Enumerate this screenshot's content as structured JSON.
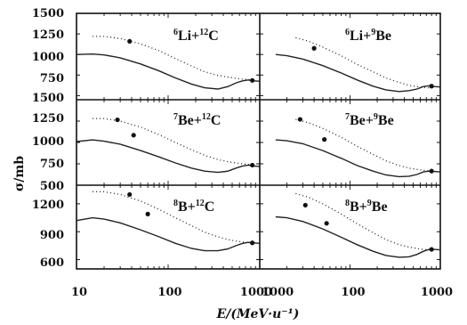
{
  "figure": {
    "ylabel": "σ/mb",
    "xlabel": "E/(MeV·u⁻¹)",
    "x_tick_labels_left": [
      "10",
      "100",
      "1000"
    ],
    "x_tick_labels_right": [
      "1000",
      "100",
      "1000"
    ]
  },
  "chart_data": [
    {
      "type": "line",
      "panel_label": {
        "mass1": "6",
        "elem1": "Li",
        "mass2": "12",
        "elem2": "C"
      },
      "xscale": "log",
      "xlim": [
        10,
        1000
      ],
      "ylim": [
        450,
        1500
      ],
      "yticks": [
        500,
        750,
        1000,
        1250,
        1500
      ],
      "y_tick_labels": [
        "500",
        "750",
        "1000",
        "1250",
        "1500"
      ],
      "series": [
        {
          "style": "solid",
          "x": [
            10,
            15,
            20,
            30,
            50,
            80,
            120,
            180,
            250,
            350,
            450,
            550,
            650,
            750,
            850,
            1000
          ],
          "y": [
            1000,
            1005,
            995,
            960,
            885,
            800,
            715,
            640,
            595,
            580,
            610,
            655,
            680,
            690,
            680,
            675
          ]
        },
        {
          "style": "dotted",
          "x": [
            15,
            20,
            30,
            50,
            80,
            120,
            180,
            250,
            350,
            450,
            550,
            650,
            800
          ],
          "y": [
            1220,
            1220,
            1195,
            1130,
            1045,
            950,
            860,
            790,
            745,
            725,
            710,
            700,
            690
          ]
        },
        {
          "style": "points",
          "x": [
            38,
            830
          ],
          "y": [
            1160,
            685
          ]
        }
      ]
    },
    {
      "type": "line",
      "panel_label": {
        "mass1": "6",
        "elem1": "Li",
        "mass2": "9",
        "elem2": "Be"
      },
      "xscale": "log",
      "xlim": [
        10,
        1000
      ],
      "ylim": [
        450,
        1500
      ],
      "yticks": [
        500,
        750,
        1000,
        1250,
        1500
      ],
      "y_tick_labels": [
        "500",
        "750",
        "1000",
        "1250",
        "1500"
      ],
      "series": [
        {
          "style": "solid",
          "x": [
            15,
            20,
            30,
            50,
            80,
            120,
            180,
            250,
            350,
            450,
            550,
            650,
            750,
            850,
            1000
          ],
          "y": [
            1000,
            985,
            945,
            865,
            775,
            690,
            615,
            570,
            550,
            560,
            580,
            610,
            620,
            610,
            605
          ]
        },
        {
          "style": "dotted",
          "x": [
            25,
            35,
            50,
            80,
            120,
            180,
            250,
            350,
            450,
            550,
            650,
            750
          ],
          "y": [
            1205,
            1160,
            1090,
            985,
            880,
            790,
            715,
            660,
            625,
            610,
            600,
            595
          ]
        },
        {
          "style": "points",
          "x": [
            40,
            800
          ],
          "y": [
            1075,
            615
          ]
        }
      ]
    },
    {
      "type": "line",
      "panel_label": {
        "mass1": "7",
        "elem1": "Be",
        "mass2": "12",
        "elem2": "C"
      },
      "xscale": "log",
      "xlim": [
        10,
        1000
      ],
      "ylim": [
        500,
        1500
      ],
      "yticks": [
        500,
        750,
        1000,
        1250,
        1500
      ],
      "y_tick_labels": [
        "500",
        "750",
        "1000",
        "1250",
        "1500"
      ],
      "series": [
        {
          "style": "solid",
          "x": [
            10,
            15,
            20,
            30,
            50,
            80,
            120,
            180,
            250,
            350,
            450,
            550,
            650,
            750,
            850,
            1000
          ],
          "y": [
            1010,
            1030,
            1015,
            980,
            905,
            830,
            760,
            700,
            665,
            650,
            665,
            700,
            725,
            735,
            725,
            720
          ]
        },
        {
          "style": "dotted",
          "x": [
            15,
            20,
            30,
            50,
            80,
            120,
            180,
            250,
            350,
            450,
            550,
            650,
            800
          ],
          "y": [
            1280,
            1280,
            1250,
            1180,
            1090,
            1000,
            915,
            850,
            800,
            775,
            760,
            750,
            740
          ]
        },
        {
          "style": "points",
          "x": [
            28,
            42,
            830
          ],
          "y": [
            1265,
            1085,
            735
          ]
        }
      ]
    },
    {
      "type": "line",
      "panel_label": {
        "mass1": "7",
        "elem1": "Be",
        "mass2": "9",
        "elem2": "Be"
      },
      "xscale": "log",
      "xlim": [
        10,
        1000
      ],
      "ylim": [
        500,
        1500
      ],
      "yticks": [
        500,
        750,
        1000,
        1250,
        1500
      ],
      "y_tick_labels": [
        "500",
        "750",
        "1000",
        "1250",
        "1500"
      ],
      "series": [
        {
          "style": "solid",
          "x": [
            15,
            20,
            30,
            50,
            80,
            120,
            180,
            250,
            350,
            450,
            550,
            650,
            750,
            850,
            1000
          ],
          "y": [
            1030,
            1020,
            985,
            905,
            815,
            730,
            665,
            620,
            600,
            605,
            625,
            655,
            665,
            660,
            655
          ]
        },
        {
          "style": "dotted",
          "x": [
            25,
            35,
            50,
            80,
            120,
            180,
            250,
            350,
            450,
            550,
            650,
            750
          ],
          "y": [
            1270,
            1230,
            1165,
            1060,
            955,
            860,
            785,
            730,
            700,
            685,
            675,
            670
          ]
        },
        {
          "style": "points",
          "x": [
            28,
            52,
            800
          ],
          "y": [
            1270,
            1035,
            665
          ]
        }
      ]
    },
    {
      "type": "line",
      "panel_label": {
        "mass1": "8",
        "elem1": "B",
        "mass2": "12",
        "elem2": "C"
      },
      "xscale": "log",
      "xlim": [
        10,
        1000
      ],
      "ylim": [
        500,
        1400
      ],
      "yticks": [
        600,
        900,
        1200
      ],
      "y_tick_labels": [
        "600",
        "900",
        "1200"
      ],
      "series": [
        {
          "style": "solid",
          "x": [
            10,
            15,
            20,
            30,
            50,
            80,
            120,
            180,
            250,
            350,
            450,
            550,
            650,
            750,
            850,
            1000
          ],
          "y": [
            1020,
            1050,
            1035,
            995,
            920,
            845,
            775,
            720,
            695,
            695,
            715,
            750,
            775,
            785,
            780,
            775
          ]
        },
        {
          "style": "dotted",
          "x": [
            15,
            20,
            30,
            50,
            80,
            120,
            180,
            250,
            350,
            450,
            550,
            650,
            800
          ],
          "y": [
            1330,
            1330,
            1300,
            1230,
            1140,
            1050,
            965,
            895,
            845,
            815,
            800,
            790,
            780
          ]
        },
        {
          "style": "points",
          "x": [
            38,
            60,
            830
          ],
          "y": [
            1300,
            1090,
            780
          ]
        }
      ]
    },
    {
      "type": "line",
      "panel_label": {
        "mass1": "8",
        "elem1": "B",
        "mass2": "9",
        "elem2": "Be"
      },
      "xscale": "log",
      "xlim": [
        10,
        1000
      ],
      "ylim": [
        500,
        1400
      ],
      "yticks": [
        600,
        900,
        1200
      ],
      "y_tick_labels": [
        "600",
        "900",
        "1200"
      ],
      "series": [
        {
          "style": "solid",
          "x": [
            15,
            20,
            30,
            50,
            80,
            120,
            180,
            250,
            350,
            450,
            550,
            650,
            750,
            850,
            1000
          ],
          "y": [
            1060,
            1050,
            1010,
            930,
            840,
            760,
            690,
            645,
            625,
            630,
            655,
            690,
            710,
            710,
            705
          ]
        },
        {
          "style": "dotted",
          "x": [
            25,
            35,
            50,
            80,
            120,
            180,
            250,
            350,
            450,
            550,
            650,
            750
          ],
          "y": [
            1310,
            1270,
            1200,
            1090,
            985,
            890,
            815,
            760,
            735,
            720,
            710,
            705
          ]
        },
        {
          "style": "points",
          "x": [
            32,
            55,
            800
          ],
          "y": [
            1185,
            990,
            710
          ]
        }
      ]
    }
  ]
}
